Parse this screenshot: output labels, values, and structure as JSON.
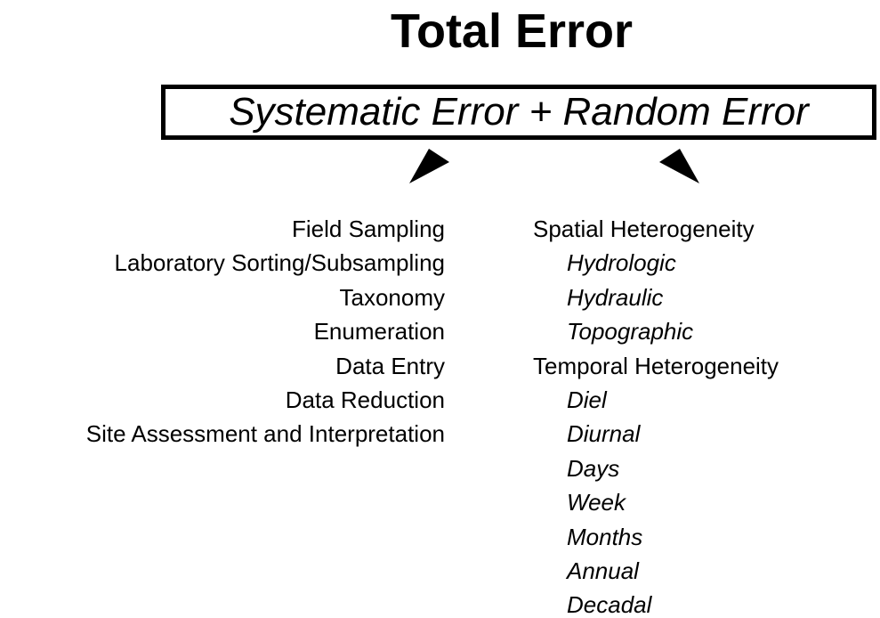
{
  "title": "Total Error",
  "equation": "Systematic Error + Random Error",
  "systematic_sources": [
    "Field Sampling",
    "Laboratory Sorting/Subsampling",
    "Taxonomy",
    "Enumeration",
    "Data Entry",
    "Data Reduction",
    "Site Assessment and Interpretation"
  ],
  "random_sources": [
    {
      "label": "Spatial Heterogeneity",
      "items": [
        "Hydrologic",
        "Hydraulic",
        "Topographic"
      ]
    },
    {
      "label": "Temporal Heterogeneity",
      "items": [
        "Diel",
        "Diurnal",
        "Days",
        "Week",
        "Months",
        "Annual",
        "Decadal"
      ]
    }
  ]
}
